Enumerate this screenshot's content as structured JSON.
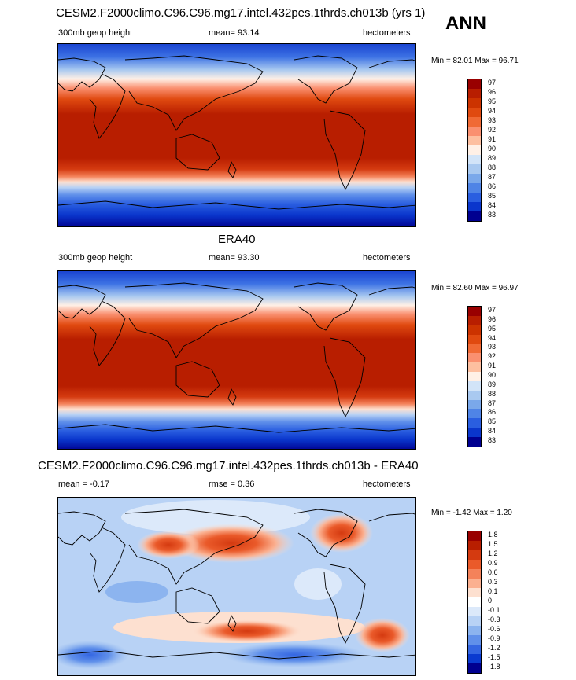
{
  "season": "ANN",
  "panels": [
    {
      "title": "CESM2.F2000climo.C96.C96.mg17.intel.432pes.1thrds.ch013b (yrs 1)",
      "left_label": "300mb geop height",
      "stat_label": "mean=  93.14",
      "units": "hectometers",
      "minmax": "Min =  82.01 Max =  96.71"
    },
    {
      "title": "ERA40",
      "left_label": "300mb geop height",
      "stat_label": "mean=  93.30",
      "units": "hectometers",
      "minmax": "Min =  82.60 Max =  96.97"
    },
    {
      "title": "CESM2.F2000climo.C96.C96.mg17.intel.432pes.1thrds.ch013b - ERA40",
      "left_label": "mean =  -0.17",
      "stat_label": "rmse =   0.36",
      "units": "hectometers",
      "minmax": "Min =  -1.42 Max =   1.20"
    }
  ],
  "chart_data": [
    {
      "type": "heatmap",
      "title": "CESM2.F2000climo.C96.C96.mg17.intel.432pes.1thrds.ch013b (yrs 1)",
      "variable": "300mb geop height",
      "units": "hectometers",
      "mean": 93.14,
      "min": 82.01,
      "max": 96.71,
      "colorbar_levels": [
        "97",
        "96",
        "95",
        "94",
        "93",
        "92",
        "91",
        "90",
        "89",
        "88",
        "87",
        "86",
        "85",
        "84",
        "83"
      ],
      "colorbar_colors": [
        "#990000",
        "#b81e00",
        "#cc3300",
        "#e04a10",
        "#f06a35",
        "#fa9070",
        "#fdbfa0",
        "#fff0e6",
        "#d2e4f8",
        "#a9c9f0",
        "#7aa8ea",
        "#4f84e6",
        "#2a5ee0",
        "#0a36cc",
        "#000090"
      ]
    },
    {
      "type": "heatmap",
      "title": "ERA40",
      "variable": "300mb geop height",
      "units": "hectometers",
      "mean": 93.3,
      "min": 82.6,
      "max": 96.97,
      "colorbar_levels": [
        "97",
        "96",
        "95",
        "94",
        "93",
        "92",
        "91",
        "90",
        "89",
        "88",
        "87",
        "86",
        "85",
        "84",
        "83"
      ],
      "colorbar_colors": [
        "#990000",
        "#b81e00",
        "#cc3300",
        "#e04a10",
        "#f06a35",
        "#fa9070",
        "#fdbfa0",
        "#fff0e6",
        "#d2e4f8",
        "#a9c9f0",
        "#7aa8ea",
        "#4f84e6",
        "#2a5ee0",
        "#0a36cc",
        "#000090"
      ]
    },
    {
      "type": "heatmap",
      "title": "CESM2.F2000climo.C96.C96.mg17.intel.432pes.1thrds.ch013b - ERA40",
      "units": "hectometers",
      "mean": -0.17,
      "rmse": 0.36,
      "min": -1.42,
      "max": 1.2,
      "colorbar_levels": [
        "1.8",
        "1.5",
        "1.2",
        "0.9",
        "0.6",
        "0.3",
        "0.1",
        "0",
        "-0.1",
        "-0.3",
        "-0.6",
        "-0.9",
        "-1.2",
        "-1.5",
        "-1.8"
      ],
      "colorbar_colors": [
        "#990000",
        "#b81e00",
        "#d43a10",
        "#ea5a2a",
        "#f4825a",
        "#fbb090",
        "#fde0d0",
        "#ffffff",
        "#dce9fa",
        "#b8d2f5",
        "#8cb4ef",
        "#6090ea",
        "#3466e2",
        "#0a3ad0",
        "#000090"
      ]
    }
  ]
}
